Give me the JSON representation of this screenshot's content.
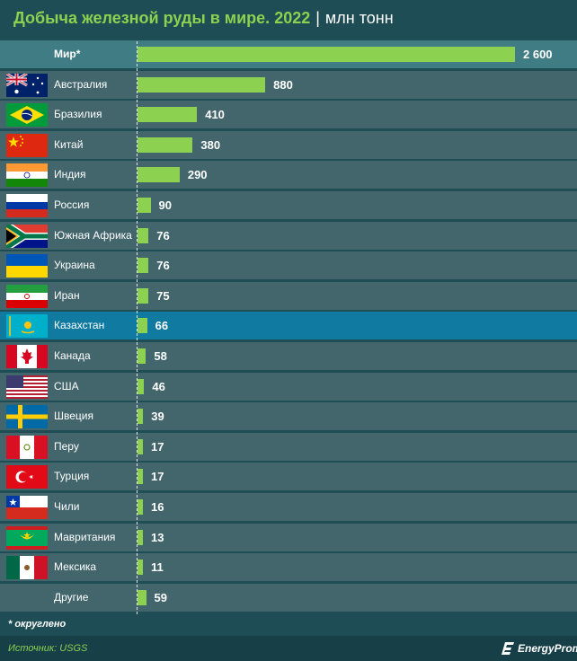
{
  "header": {
    "title": "Добыча железной руды в мире. 2022",
    "separator": "|",
    "unit": "млн тонн"
  },
  "colors": {
    "accent": "#8cd14f",
    "background": "#1e4d55",
    "row": "#43666d",
    "world_row": "#3f7c84",
    "highlight_row": "#107aa0"
  },
  "chart_data": {
    "type": "bar",
    "orientation": "horizontal",
    "categories": [
      "Мир*",
      "Австралия",
      "Бразилия",
      "Китай",
      "Индия",
      "Россия",
      "Южная Африка",
      "Украина",
      "Иран",
      "Казахстан",
      "Канада",
      "США",
      "Швеция",
      "Перу",
      "Турция",
      "Чили",
      "Мавритания",
      "Мексика",
      "Другие"
    ],
    "values": [
      2600,
      880,
      410,
      380,
      290,
      90,
      76,
      76,
      75,
      66,
      58,
      46,
      39,
      17,
      17,
      16,
      13,
      11,
      59
    ],
    "value_labels": [
      "2 600",
      "880",
      "410",
      "380",
      "290",
      "90",
      "76",
      "76",
      "75",
      "66",
      "58",
      "46",
      "39",
      "17",
      "17",
      "16",
      "13",
      "11",
      "59"
    ],
    "flags": [
      "",
      "australia-flag",
      "brazil-flag",
      "china-flag",
      "india-flag",
      "russia-flag",
      "south-africa-flag",
      "ukraine-flag",
      "iran-flag",
      "kazakhstan-flag",
      "canada-flag",
      "usa-flag",
      "sweden-flag",
      "peru-flag",
      "turkey-flag",
      "chile-flag",
      "mauritania-flag",
      "mexico-flag",
      ""
    ],
    "highlight": "Казахстан",
    "xlim": [
      0,
      2600
    ],
    "grid": false,
    "legend": "none"
  },
  "footer": {
    "footnote": "* округлено",
    "source": "Источник: USGS",
    "brand": "EnergyProm"
  }
}
